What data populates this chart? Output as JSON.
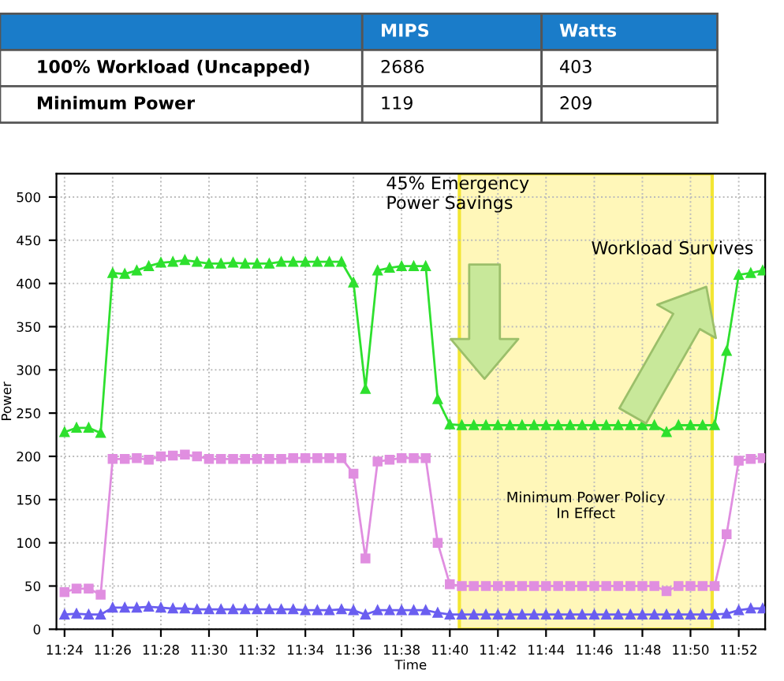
{
  "chart_data": {
    "type": "line",
    "xlabel": "Time",
    "ylabel": "Power",
    "x": [
      11.4,
      11.4083,
      11.4167,
      11.425,
      11.4333,
      11.4417,
      11.45,
      11.4583,
      11.4667,
      11.475,
      11.4833,
      11.4917,
      11.5,
      11.5083,
      11.5167,
      11.525,
      11.5333,
      11.5417,
      11.55,
      11.5583,
      11.5667,
      11.575,
      11.5833,
      11.5917,
      11.6,
      11.6083,
      11.6167,
      11.625,
      11.6333,
      11.6417,
      11.65,
      11.6583,
      11.6667,
      11.675,
      11.6833,
      11.6917,
      11.7,
      11.7083,
      11.7167,
      11.725,
      11.7333,
      11.7417,
      11.75,
      11.7583,
      11.7667,
      11.775,
      11.7833,
      11.7917,
      11.8,
      11.8083,
      11.8167,
      11.825,
      11.8333,
      11.8417,
      11.85,
      11.8583,
      11.8667,
      11.875,
      11.8833
    ],
    "series": [
      {
        "color": "#2ee02e",
        "marker": "triangle",
        "values": [
          228,
          233,
          233,
          227,
          412,
          411,
          415,
          420,
          424,
          425,
          427,
          425,
          423,
          423,
          424,
          423,
          423,
          423,
          425,
          425,
          425,
          425,
          425,
          425,
          401,
          278,
          415,
          418,
          420,
          420,
          420,
          266,
          237,
          236,
          236,
          236,
          236,
          236,
          236,
          236,
          236,
          236,
          236,
          236,
          236,
          236,
          236,
          236,
          236,
          236,
          228,
          236,
          236,
          236,
          236,
          322,
          410,
          412,
          415
        ]
      },
      {
        "color": "#e08ee0",
        "marker": "square",
        "values": [
          43,
          47,
          47,
          40,
          197,
          197,
          198,
          196,
          200,
          201,
          202,
          200,
          197,
          197,
          197,
          197,
          197,
          197,
          197,
          198,
          198,
          198,
          198,
          198,
          180,
          82,
          194,
          196,
          198,
          198,
          198,
          100,
          52,
          50,
          50,
          50,
          50,
          50,
          50,
          50,
          50,
          50,
          50,
          50,
          50,
          50,
          50,
          50,
          50,
          50,
          44,
          50,
          50,
          50,
          50,
          110,
          195,
          197,
          198
        ]
      },
      {
        "color": "#6a5ef0",
        "marker": "triangle",
        "values": [
          17,
          18,
          17,
          17,
          25,
          25,
          25,
          26,
          25,
          24,
          24,
          23,
          23,
          23,
          23,
          23,
          23,
          23,
          23,
          23,
          22,
          22,
          22,
          23,
          22,
          17,
          22,
          22,
          22,
          22,
          22,
          19,
          17,
          17,
          17,
          17,
          17,
          17,
          17,
          17,
          17,
          17,
          17,
          17,
          17,
          17,
          17,
          17,
          17,
          17,
          17,
          17,
          17,
          17,
          17,
          18,
          22,
          24,
          24
        ]
      }
    ],
    "xlim": [
      11.3944,
      11.885
    ],
    "ylim": [
      0,
      527
    ],
    "xticks": [
      {
        "value": 11.4,
        "label": "11:24"
      },
      {
        "value": 11.4333,
        "label": "11:26"
      },
      {
        "value": 11.4667,
        "label": "11:28"
      },
      {
        "value": 11.5,
        "label": "11:30"
      },
      {
        "value": 11.5333,
        "label": "11:32"
      },
      {
        "value": 11.5667,
        "label": "11:34"
      },
      {
        "value": 11.6,
        "label": "11:36"
      },
      {
        "value": 11.6333,
        "label": "11:38"
      },
      {
        "value": 11.6667,
        "label": "11:40"
      },
      {
        "value": 11.7,
        "label": "11:42"
      },
      {
        "value": 11.7333,
        "label": "11:44"
      },
      {
        "value": 11.7667,
        "label": "11:46"
      },
      {
        "value": 11.8,
        "label": "11:48"
      },
      {
        "value": 11.8333,
        "label": "11:50"
      },
      {
        "value": 11.8667,
        "label": "11:52"
      }
    ],
    "yticks": [
      0,
      50,
      100,
      150,
      200,
      250,
      300,
      350,
      400,
      450,
      500
    ],
    "bands": [
      {
        "axis": "x",
        "from": 11.6733,
        "to": 11.8483,
        "label": "Minimum Power Policy\nIn Effect",
        "color": "#fff6a8"
      }
    ],
    "annotations": [
      "45% Emergency\nPower Savings",
      "Workload Survives",
      "MIPS",
      "Watts",
      "100% Workload (Uncapped)",
      "2686",
      "403",
      "Minimum Power",
      "119",
      "209"
    ],
    "grid": true,
    "legend": false,
    "line_style": "solid"
  }
}
